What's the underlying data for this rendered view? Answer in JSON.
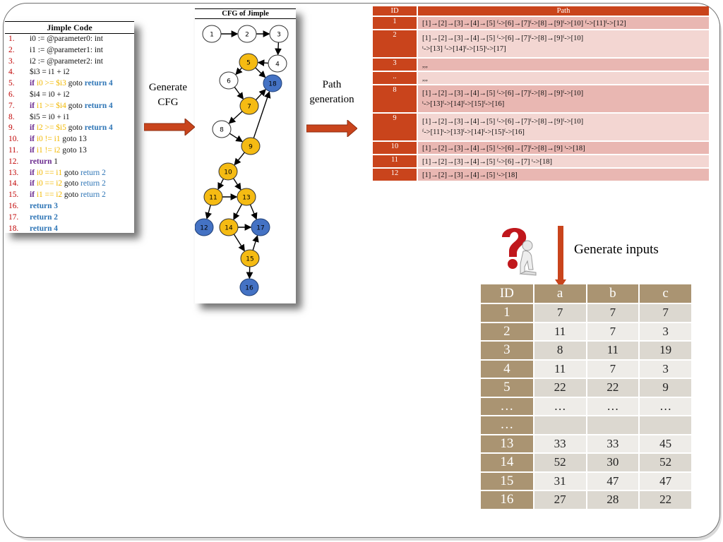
{
  "code_panel": {
    "title": "Jimple Code",
    "lines": [
      {
        "n": "1.",
        "parts": [
          {
            "t": "i0 := @parameter0:  int",
            "c": ""
          }
        ]
      },
      {
        "n": "2.",
        "parts": [
          {
            "t": "i1 := @parameter1:  int",
            "c": ""
          }
        ]
      },
      {
        "n": "3.",
        "parts": [
          {
            "t": "i2 := @parameter2:  int",
            "c": ""
          }
        ]
      },
      {
        "n": "4.",
        "parts": [
          {
            "t": "$i3 = i1 + i2",
            "c": ""
          }
        ]
      },
      {
        "n": "5.",
        "parts": [
          {
            "t": "if ",
            "c": "kw"
          },
          {
            "t": "i0 >= $i3",
            "c": "hl"
          },
          {
            "t": " goto ",
            "c": ""
          },
          {
            "t": "return 4",
            "c": "kw-blue"
          }
        ]
      },
      {
        "n": "6.",
        "parts": [
          {
            "t": "$i4 = i0 + i2",
            "c": ""
          }
        ]
      },
      {
        "n": "7.",
        "parts": [
          {
            "t": "if ",
            "c": "kw"
          },
          {
            "t": "i1 >= $i4",
            "c": "hl"
          },
          {
            "t": " goto ",
            "c": ""
          },
          {
            "t": "return 4",
            "c": "kw-blue"
          }
        ]
      },
      {
        "n": "8.",
        "parts": [
          {
            "t": "$i5 = i0 + i1",
            "c": ""
          }
        ]
      },
      {
        "n": "9.",
        "parts": [
          {
            "t": "if ",
            "c": "kw"
          },
          {
            "t": "i2 >= $i5",
            "c": "hl"
          },
          {
            "t": " goto ",
            "c": ""
          },
          {
            "t": "return 4",
            "c": "kw-blue"
          }
        ]
      },
      {
        "n": "10.",
        "parts": [
          {
            "t": "if ",
            "c": "kw"
          },
          {
            "t": "i0 != i1",
            "c": "hl"
          },
          {
            "t": " goto  13",
            "c": ""
          }
        ]
      },
      {
        "n": "11.",
        "parts": [
          {
            "t": "if ",
            "c": "kw"
          },
          {
            "t": "i1 != i2",
            "c": "hl"
          },
          {
            "t": " goto 13",
            "c": ""
          }
        ]
      },
      {
        "n": "12.",
        "parts": [
          {
            "t": "return",
            "c": "kw"
          },
          {
            "t": " 1",
            "c": ""
          }
        ]
      },
      {
        "n": "13.",
        "parts": [
          {
            "t": "if ",
            "c": "kw"
          },
          {
            "t": "i0 == i1",
            "c": "hl"
          },
          {
            "t": " goto ",
            "c": ""
          },
          {
            "t": "return 2",
            "c": "blue"
          }
        ]
      },
      {
        "n": "14.",
        "parts": [
          {
            "t": "if ",
            "c": "kw"
          },
          {
            "t": "i0 == i2",
            "c": "hl"
          },
          {
            "t": " goto ",
            "c": ""
          },
          {
            "t": "return 2",
            "c": "blue"
          }
        ]
      },
      {
        "n": "15.",
        "parts": [
          {
            "t": "if ",
            "c": "kw"
          },
          {
            "t": "i1 == i2",
            "c": "hl"
          },
          {
            "t": " goto ",
            "c": ""
          },
          {
            "t": "return 2",
            "c": "blue"
          }
        ]
      },
      {
        "n": "16.",
        "parts": [
          {
            "t": "return 3",
            "c": "kw-blue"
          }
        ]
      },
      {
        "n": "17.",
        "parts": [
          {
            "t": "return 2",
            "c": "kw-blue"
          }
        ]
      },
      {
        "n": "18.",
        "parts": [
          {
            "t": "return 4",
            "c": "kw-blue"
          }
        ]
      }
    ]
  },
  "cfg_panel": {
    "title": "CFG of Jimple",
    "colors": {
      "white": "#ffffff",
      "yellow": "#f5bb13",
      "blue": "#4472c4"
    },
    "nodes": [
      {
        "id": "1",
        "color": "white"
      },
      {
        "id": "2",
        "color": "white"
      },
      {
        "id": "3",
        "color": "white"
      },
      {
        "id": "4",
        "color": "white"
      },
      {
        "id": "5",
        "color": "yellow"
      },
      {
        "id": "6",
        "color": "white"
      },
      {
        "id": "18",
        "color": "blue"
      },
      {
        "id": "7",
        "color": "yellow"
      },
      {
        "id": "8",
        "color": "white"
      },
      {
        "id": "9",
        "color": "yellow"
      },
      {
        "id": "10",
        "color": "yellow"
      },
      {
        "id": "11",
        "color": "yellow"
      },
      {
        "id": "13",
        "color": "yellow"
      },
      {
        "id": "12",
        "color": "blue"
      },
      {
        "id": "14",
        "color": "yellow"
      },
      {
        "id": "17",
        "color": "blue"
      },
      {
        "id": "15",
        "color": "yellow"
      },
      {
        "id": "16",
        "color": "blue"
      }
    ],
    "edges": [
      [
        "1",
        "2"
      ],
      [
        "2",
        "3"
      ],
      [
        "3",
        "4"
      ],
      [
        "4",
        "5"
      ],
      [
        "5",
        "6"
      ],
      [
        "5",
        "18"
      ],
      [
        "6",
        "7"
      ],
      [
        "7",
        "18"
      ],
      [
        "7",
        "8"
      ],
      [
        "8",
        "9"
      ],
      [
        "9",
        "18"
      ],
      [
        "9",
        "10"
      ],
      [
        "10",
        "11"
      ],
      [
        "10",
        "13"
      ],
      [
        "11",
        "12"
      ],
      [
        "11",
        "13"
      ],
      [
        "13",
        "14"
      ],
      [
        "13",
        "17"
      ],
      [
        "14",
        "17"
      ],
      [
        "14",
        "15"
      ],
      [
        "15",
        "17"
      ],
      [
        "15",
        "16"
      ]
    ]
  },
  "steps": {
    "generate_cfg": "Generate CFG",
    "path_generation": "Path generation",
    "generate_inputs": "Generate inputs",
    "arrow_color": "#c9441c"
  },
  "path_table": {
    "headers": {
      "id": "ID",
      "path": "Path"
    },
    "rows": [
      {
        "id": "1",
        "line1": "[1]→[2]→[3]→[4]→[5] ᶠ->[6]→[7]ᶠ->[8]→[9]ᶠ->[10] ᶠ->[11]ᶠ->[12]",
        "line2": ""
      },
      {
        "id": "2",
        "line1": "[1]→[2]→[3]→[4]→[5] ᶠ->[6]→[7]ᶠ->[8]→[9]ᶠ->[10]",
        "line2": "ᵗ->[13] ᶠ->[14]ᶠ->[15]ᵗ->[17]"
      },
      {
        "id": "3",
        "line1": ",,,",
        "line2": ""
      },
      {
        "id": "..",
        "line1": ",,,",
        "line2": ""
      },
      {
        "id": "8",
        "line1": "[1]→[2]→[3]→[4]→[5] ᶠ->[6]→[7]ᶠ->[8]→[9]ᶠ->[10]",
        "line2": "ᵗ->[13]ᶠ->[14]ᶠ->[15]ᶠ->[16]"
      },
      {
        "id": "9",
        "line1": "[1]→[2]→[3]→[4]→[5] ᶠ->[6]→[7]ᶠ->[8]→[9]ᶠ->[10]",
        "line2": "ᶠ->[11]ᵗ->[13]ᶠ->[14]ᶠ->[15]ᶠ->[16]"
      },
      {
        "id": "10",
        "line1": "[1]→[2]→[3]→[4]→[5] ᶠ->[6]→[7]ᶠ->[8]→[9] ᵗ->[18]",
        "line2": ""
      },
      {
        "id": "11",
        "line1": "[1]→[2]→[3]→[4]→[5] ᶠ->[6]→[7] ᵗ->[18]",
        "line2": ""
      },
      {
        "id": "12",
        "line1": "[1]→[2]→[3]→[4]→[5] ᵗ->[18]",
        "line2": ""
      }
    ]
  },
  "input_table": {
    "headers": [
      "ID",
      "a",
      "b",
      "c"
    ],
    "rows": [
      [
        "1",
        "7",
        "7",
        "7"
      ],
      [
        "2",
        "11",
        "7",
        "3"
      ],
      [
        "3",
        "8",
        "11",
        "19"
      ],
      [
        "4",
        "11",
        "7",
        "3"
      ],
      [
        "5",
        "22",
        "22",
        "9"
      ],
      [
        "…",
        "…",
        "…",
        "…"
      ],
      [
        "…",
        "",
        "",
        ""
      ],
      [
        "13",
        "33",
        "33",
        "45"
      ],
      [
        "14",
        "52",
        "30",
        "52"
      ],
      [
        "15",
        "31",
        "47",
        "47"
      ],
      [
        "16",
        "27",
        "28",
        "22"
      ]
    ]
  }
}
